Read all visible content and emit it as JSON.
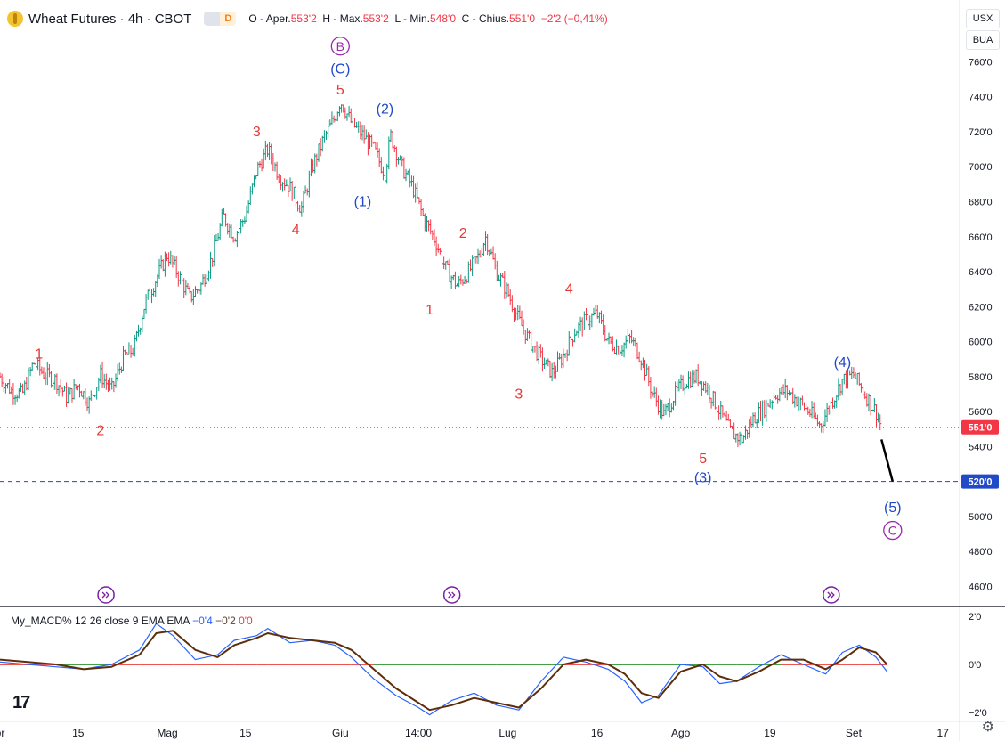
{
  "header": {
    "title": "Wheat Futures · 4h · CBOT",
    "badge_a": "",
    "badge_b": "D",
    "o_label": "O - Aper.",
    "o_value": "553'2",
    "h_label": "H - Max.",
    "h_value": "553'2",
    "l_label": "L - Min.",
    "l_value": "548'0",
    "c_label": "C - Chius.",
    "c_value": "551'0",
    "change": "−2'2 (−0,41%)"
  },
  "currency": {
    "unit": "USX",
    "unit2": "BUA"
  },
  "colors": {
    "up": "#089981",
    "down": "#f23645",
    "wave_red": "#e53935",
    "wave_blue": "#2149c8",
    "wave_purple": "#9c27b0",
    "price_tag": "#f23645",
    "target_tag": "#2149c8",
    "macd_line": "#2962ff",
    "signal_line": "#5d2e0c",
    "zero_pos": "#43a047",
    "zero_neg": "#ef5350"
  },
  "chart_data": {
    "type": "line",
    "title": "Wheat Futures · 4h · CBOT",
    "ylim": [
      450,
      775
    ],
    "y_ticks": [
      "760'0",
      "740'0",
      "720'0",
      "700'0",
      "680'0",
      "660'0",
      "640'0",
      "620'0",
      "600'0",
      "580'0",
      "560'0",
      "540'0",
      "520'0",
      "500'0",
      "480'0",
      "460'0"
    ],
    "y_tick_values": [
      760,
      740,
      720,
      700,
      680,
      660,
      640,
      620,
      600,
      580,
      560,
      540,
      520,
      500,
      480,
      460
    ],
    "x_ticks": [
      "pr",
      "15",
      "Mag",
      "15",
      "Giu",
      "14:00",
      "Lug",
      "16",
      "Ago",
      "19",
      "Set",
      "17"
    ],
    "x_tick_days": [
      1,
      15,
      31,
      45,
      62,
      76,
      92,
      108,
      123,
      139,
      154,
      170
    ],
    "x_range_days": [
      1,
      173
    ],
    "current_price": {
      "value": 551,
      "label": "551'0"
    },
    "target_level": {
      "value": 520,
      "label": "520'0"
    },
    "price_path": [
      [
        1,
        580
      ],
      [
        3,
        572
      ],
      [
        5,
        570
      ],
      [
        7,
        588
      ],
      [
        9,
        581
      ],
      [
        11,
        578
      ],
      [
        13,
        568
      ],
      [
        15,
        575
      ],
      [
        17,
        565
      ],
      [
        19,
        581
      ],
      [
        21,
        572
      ],
      [
        23,
        590
      ],
      [
        25,
        596
      ],
      [
        27,
        622
      ],
      [
        29,
        636
      ],
      [
        31,
        650
      ],
      [
        33,
        638
      ],
      [
        35,
        625
      ],
      [
        37,
        632
      ],
      [
        39,
        648
      ],
      [
        41,
        672
      ],
      [
        43,
        660
      ],
      [
        45,
        672
      ],
      [
        47,
        698
      ],
      [
        49,
        710
      ],
      [
        51,
        695
      ],
      [
        53,
        688
      ],
      [
        55,
        676
      ],
      [
        57,
        700
      ],
      [
        59,
        716
      ],
      [
        61,
        728
      ],
      [
        62,
        738
      ],
      [
        64,
        725
      ],
      [
        66,
        718
      ],
      [
        68,
        710
      ],
      [
        70,
        696
      ],
      [
        71,
        718
      ],
      [
        73,
        700
      ],
      [
        75,
        688
      ],
      [
        77,
        670
      ],
      [
        79,
        658
      ],
      [
        81,
        641
      ],
      [
        83,
        632
      ],
      [
        85,
        640
      ],
      [
        87,
        650
      ],
      [
        88,
        660
      ],
      [
        90,
        640
      ],
      [
        92,
        628
      ],
      [
        94,
        612
      ],
      [
        96,
        600
      ],
      [
        98,
        590
      ],
      [
        100,
        582
      ],
      [
        102,
        592
      ],
      [
        104,
        606
      ],
      [
        106,
        612
      ],
      [
        108,
        616
      ],
      [
        110,
        600
      ],
      [
        112,
        596
      ],
      [
        114,
        602
      ],
      [
        116,
        590
      ],
      [
        118,
        570
      ],
      [
        120,
        558
      ],
      [
        122,
        570
      ],
      [
        124,
        578
      ],
      [
        126,
        580
      ],
      [
        128,
        572
      ],
      [
        130,
        560
      ],
      [
        132,
        548
      ],
      [
        134,
        544
      ],
      [
        136,
        556
      ],
      [
        138,
        562
      ],
      [
        140,
        570
      ],
      [
        142,
        572
      ],
      [
        144,
        566
      ],
      [
        146,
        560
      ],
      [
        148,
        552
      ],
      [
        150,
        565
      ],
      [
        152,
        578
      ],
      [
        154,
        581
      ],
      [
        156,
        570
      ],
      [
        158,
        560
      ],
      [
        159,
        551
      ]
    ],
    "forecast_line": [
      [
        159,
        544
      ],
      [
        161,
        520
      ]
    ],
    "annotations": [
      {
        "text": "1",
        "day": 8,
        "price": 593,
        "color": "wave_red"
      },
      {
        "text": "2",
        "day": 19,
        "price": 549,
        "color": "wave_red"
      },
      {
        "text": "3",
        "day": 47,
        "price": 720,
        "color": "wave_red"
      },
      {
        "text": "4",
        "day": 54,
        "price": 664,
        "color": "wave_red"
      },
      {
        "text": "5",
        "day": 62,
        "price": 744,
        "color": "wave_red"
      },
      {
        "text": "(C)",
        "day": 62,
        "price": 756,
        "color": "wave_blue"
      },
      {
        "text": "B",
        "day": 62,
        "price": 769,
        "color": "wave_purple",
        "circle": true
      },
      {
        "text": "(2)",
        "day": 70,
        "price": 733,
        "color": "wave_blue"
      },
      {
        "text": "(1)",
        "day": 66,
        "price": 680,
        "color": "wave_blue"
      },
      {
        "text": "1",
        "day": 78,
        "price": 618,
        "color": "wave_red"
      },
      {
        "text": "2",
        "day": 84,
        "price": 662,
        "color": "wave_red"
      },
      {
        "text": "3",
        "day": 94,
        "price": 570,
        "color": "wave_red"
      },
      {
        "text": "4",
        "day": 103,
        "price": 630,
        "color": "wave_red"
      },
      {
        "text": "5",
        "day": 127,
        "price": 533,
        "color": "wave_red"
      },
      {
        "text": "(3)",
        "day": 127,
        "price": 522,
        "color": "wave_blue"
      },
      {
        "text": "(4)",
        "day": 152,
        "price": 588,
        "color": "wave_blue"
      },
      {
        "text": "(5)",
        "day": 161,
        "price": 505,
        "color": "wave_blue"
      },
      {
        "text": "C",
        "day": 161,
        "price": 492,
        "color": "wave_purple",
        "circle": true
      }
    ],
    "event_markers_days": [
      20,
      82,
      150
    ],
    "macd": {
      "legend": "My_MACD% 12 26 close 9 EMA EMA",
      "values": [
        "−0'4",
        "−0'2",
        "0'0"
      ],
      "ylim": [
        -2.3,
        2.3
      ],
      "y_ticks": [
        "2'0",
        "0'0",
        "−2'0"
      ],
      "y_tick_values": [
        2,
        0,
        -2
      ],
      "macd": [
        [
          1,
          0.1
        ],
        [
          6,
          0.0
        ],
        [
          11,
          -0.1
        ],
        [
          16,
          -0.2
        ],
        [
          21,
          0.0
        ],
        [
          26,
          0.6
        ],
        [
          29,
          1.7
        ],
        [
          32,
          1.2
        ],
        [
          36,
          0.2
        ],
        [
          40,
          0.4
        ],
        [
          43,
          1.0
        ],
        [
          47,
          1.2
        ],
        [
          49,
          1.5
        ],
        [
          53,
          0.9
        ],
        [
          57,
          1.0
        ],
        [
          61,
          0.8
        ],
        [
          64,
          0.3
        ],
        [
          68,
          -0.6
        ],
        [
          72,
          -1.3
        ],
        [
          76,
          -1.8
        ],
        [
          78,
          -2.1
        ],
        [
          82,
          -1.5
        ],
        [
          86,
          -1.2
        ],
        [
          90,
          -1.7
        ],
        [
          94,
          -1.9
        ],
        [
          98,
          -0.7
        ],
        [
          102,
          0.3
        ],
        [
          106,
          0.1
        ],
        [
          110,
          -0.2
        ],
        [
          113,
          -0.7
        ],
        [
          116,
          -1.6
        ],
        [
          119,
          -1.3
        ],
        [
          123,
          0.0
        ],
        [
          127,
          -0.1
        ],
        [
          130,
          -0.8
        ],
        [
          133,
          -0.7
        ],
        [
          137,
          -0.1
        ],
        [
          141,
          0.4
        ],
        [
          145,
          0.0
        ],
        [
          149,
          -0.4
        ],
        [
          152,
          0.5
        ],
        [
          155,
          0.8
        ],
        [
          158,
          0.3
        ],
        [
          160,
          -0.3
        ]
      ],
      "signal": [
        [
          1,
          0.2
        ],
        [
          6,
          0.1
        ],
        [
          11,
          0.0
        ],
        [
          16,
          -0.2
        ],
        [
          21,
          -0.1
        ],
        [
          26,
          0.4
        ],
        [
          29,
          1.3
        ],
        [
          32,
          1.4
        ],
        [
          36,
          0.6
        ],
        [
          40,
          0.3
        ],
        [
          43,
          0.8
        ],
        [
          47,
          1.1
        ],
        [
          49,
          1.3
        ],
        [
          53,
          1.1
        ],
        [
          57,
          1.0
        ],
        [
          61,
          0.9
        ],
        [
          64,
          0.6
        ],
        [
          68,
          -0.2
        ],
        [
          72,
          -1.0
        ],
        [
          76,
          -1.6
        ],
        [
          78,
          -1.9
        ],
        [
          82,
          -1.7
        ],
        [
          86,
          -1.4
        ],
        [
          90,
          -1.6
        ],
        [
          94,
          -1.8
        ],
        [
          98,
          -1.0
        ],
        [
          102,
          0.0
        ],
        [
          106,
          0.2
        ],
        [
          110,
          0.0
        ],
        [
          113,
          -0.4
        ],
        [
          116,
          -1.2
        ],
        [
          119,
          -1.4
        ],
        [
          123,
          -0.3
        ],
        [
          127,
          0.0
        ],
        [
          130,
          -0.5
        ],
        [
          133,
          -0.7
        ],
        [
          137,
          -0.3
        ],
        [
          141,
          0.2
        ],
        [
          145,
          0.2
        ],
        [
          149,
          -0.2
        ],
        [
          152,
          0.2
        ],
        [
          155,
          0.7
        ],
        [
          158,
          0.5
        ],
        [
          160,
          0.0
        ]
      ]
    }
  }
}
